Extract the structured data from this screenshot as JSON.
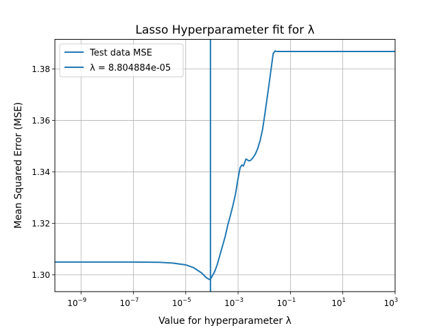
{
  "chart_data": {
    "type": "line",
    "title": "Lasso Hyperparameter fit for λ",
    "xlabel": "Value for hyperparameter λ",
    "ylabel": "Mean Squared Error (MSE)",
    "xscale": "log",
    "xlim": [
      1e-10,
      1000.0
    ],
    "ylim": [
      1.2935,
      1.3915
    ],
    "x_ticks": [
      {
        "value": 1e-09,
        "base": "10",
        "exp": "−9"
      },
      {
        "value": 1e-07,
        "base": "10",
        "exp": "−7"
      },
      {
        "value": 1e-05,
        "base": "10",
        "exp": "−5"
      },
      {
        "value": 0.001,
        "base": "10",
        "exp": "−3"
      },
      {
        "value": 0.1,
        "base": "10",
        "exp": "−1"
      },
      {
        "value": 10.0,
        "base": "10",
        "exp": "1"
      },
      {
        "value": 1000.0,
        "base": "10",
        "exp": "3"
      }
    ],
    "y_ticks": [
      {
        "value": 1.3,
        "label": "1.30"
      },
      {
        "value": 1.32,
        "label": "1.32"
      },
      {
        "value": 1.34,
        "label": "1.34"
      },
      {
        "value": 1.36,
        "label": "1.36"
      },
      {
        "value": 1.38,
        "label": "1.38"
      }
    ],
    "grid": true,
    "legend_position": "upper-left",
    "series": [
      {
        "name": "Test data MSE",
        "color": "#1f77b4",
        "x": [
          1e-10,
          1e-09,
          1e-08,
          1e-07,
          1e-06,
          3.16e-06,
          1e-05,
          2e-05,
          4e-05,
          6e-05,
          8e-05,
          9e-05,
          0.0001,
          0.00013,
          0.00016,
          0.0002,
          0.00025,
          0.00032,
          0.0004,
          0.0005,
          0.00063,
          0.0008,
          0.001,
          0.0012,
          0.0014,
          0.0016,
          0.0018,
          0.002,
          0.0022,
          0.0024,
          0.0026,
          0.003,
          0.0035,
          0.0045,
          0.0056,
          0.007,
          0.0085,
          0.01,
          0.012,
          0.015,
          0.018,
          0.022,
          0.026,
          0.03,
          0.033,
          0.036,
          0.1,
          1,
          10,
          100,
          1000.0
        ],
        "y": [
          1.305,
          1.305,
          1.305,
          1.305,
          1.3049,
          1.3046,
          1.3039,
          1.3028,
          1.3008,
          1.299,
          1.2982,
          1.2985,
          1.2993,
          1.3015,
          1.304,
          1.3075,
          1.311,
          1.3148,
          1.3192,
          1.3228,
          1.3268,
          1.3315,
          1.3375,
          1.3417,
          1.3427,
          1.3423,
          1.3437,
          1.345,
          1.3448,
          1.3445,
          1.3443,
          1.3445,
          1.3452,
          1.3468,
          1.349,
          1.3523,
          1.3562,
          1.3608,
          1.3665,
          1.3735,
          1.3795,
          1.386,
          1.387,
          1.3868,
          1.3868,
          1.3868,
          1.3868,
          1.3868,
          1.3868,
          1.3868,
          1.3868
        ]
      },
      {
        "name": "λ = 8.804884e-05",
        "color": "#1f77b4",
        "type": "vline",
        "x_value": 8.804884e-05
      }
    ]
  }
}
